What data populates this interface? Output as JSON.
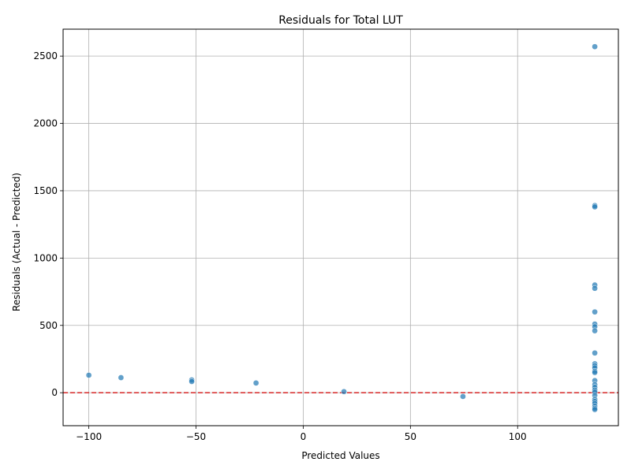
{
  "chart_data": {
    "type": "scatter",
    "title": "Residuals for Total LUT",
    "xlabel": "Predicted Values",
    "ylabel": "Residuals (Actual - Predicted)",
    "xlim": [
      -112,
      147
    ],
    "ylim": [
      -245,
      2700
    ],
    "xticks": [
      -100,
      -50,
      0,
      50,
      100
    ],
    "yticks": [
      0,
      500,
      1000,
      1500,
      2000,
      2500
    ],
    "grid": true,
    "reference_line": {
      "y": 0,
      "color": "#d62728",
      "style": "dashed"
    },
    "point_color": "#1f77b4",
    "series": [
      {
        "points": [
          {
            "x": -100,
            "y": 130
          },
          {
            "x": -85,
            "y": 112
          },
          {
            "x": -52,
            "y": 95
          },
          {
            "x": -52,
            "y": 83
          },
          {
            "x": -22,
            "y": 72
          },
          {
            "x": 19,
            "y": 8
          },
          {
            "x": 74.5,
            "y": -28
          },
          {
            "x": 136,
            "y": 2570
          },
          {
            "x": 136,
            "y": 1390
          },
          {
            "x": 136,
            "y": 1380
          },
          {
            "x": 136,
            "y": 800
          },
          {
            "x": 136,
            "y": 775
          },
          {
            "x": 136,
            "y": 600
          },
          {
            "x": 136,
            "y": 510
          },
          {
            "x": 136,
            "y": 490
          },
          {
            "x": 136,
            "y": 460
          },
          {
            "x": 136,
            "y": 295
          },
          {
            "x": 136,
            "y": 215
          },
          {
            "x": 136,
            "y": 200
          },
          {
            "x": 136,
            "y": 185
          },
          {
            "x": 136,
            "y": 160
          },
          {
            "x": 136,
            "y": 150
          },
          {
            "x": 136,
            "y": 90
          },
          {
            "x": 136,
            "y": 60
          },
          {
            "x": 136,
            "y": 40
          },
          {
            "x": 136,
            "y": 20
          },
          {
            "x": 136,
            "y": 5
          },
          {
            "x": 136,
            "y": -20
          },
          {
            "x": 136,
            "y": -50
          },
          {
            "x": 136,
            "y": -65
          },
          {
            "x": 136,
            "y": -80
          },
          {
            "x": 136,
            "y": -100
          },
          {
            "x": 136,
            "y": -115
          },
          {
            "x": 136,
            "y": -125
          }
        ]
      }
    ]
  }
}
